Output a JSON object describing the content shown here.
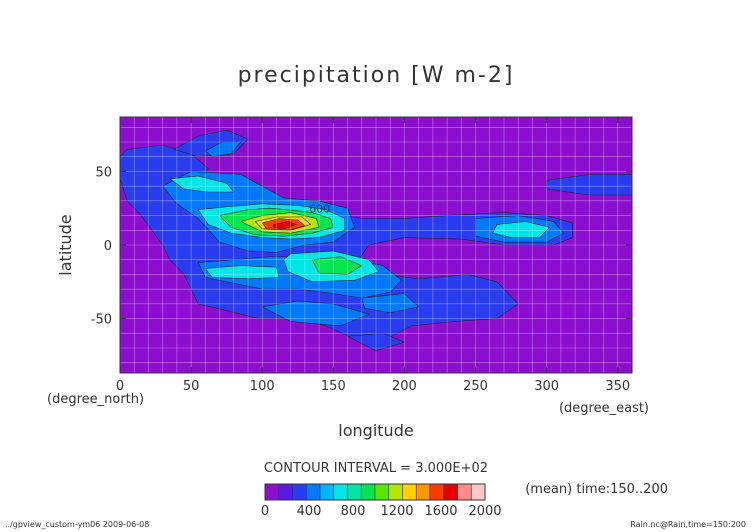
{
  "chart_data": {
    "type": "heatmap",
    "title": "precipitation [W m-2]",
    "xlabel": "longitude",
    "ylabel": "latitude",
    "x_unit": "(degree_east)",
    "y_unit": "(degree_north)",
    "xlim": [
      0,
      360
    ],
    "ylim": [
      -87,
      87
    ],
    "x_ticks": [
      0,
      50,
      100,
      150,
      200,
      250,
      300,
      350
    ],
    "y_ticks": [
      50,
      0,
      -50
    ],
    "grid": true,
    "contour_interval_text": "CONTOUR INTERVAL = 3.000E+02",
    "contour_label": "600",
    "mean_note": "(mean) time:150..200",
    "colorbar": {
      "labels": [
        "0",
        "400",
        "800",
        "1200",
        "1600",
        "2000"
      ],
      "label_values": [
        0,
        400,
        800,
        1200,
        1600,
        2000
      ],
      "min": 0,
      "max": 2000,
      "colors": [
        "#8c0fd0",
        "#5a1ae6",
        "#2a3cf0",
        "#0078ff",
        "#00b4ff",
        "#00e6e6",
        "#00e6a0",
        "#00e650",
        "#5ae600",
        "#b4e600",
        "#ffd200",
        "#ff9600",
        "#ff3c00",
        "#e60000",
        "#ff8c8c",
        "#ffc8c8"
      ]
    },
    "levels": [
      {
        "level": 1,
        "color": "#2a3cf0",
        "polygons": [
          [
            [
              5,
              65
            ],
            [
              30,
              68
            ],
            [
              50,
              62
            ],
            [
              62,
              52
            ],
            [
              55,
              40
            ],
            [
              70,
              32
            ],
            [
              95,
              30
            ],
            [
              120,
              28
            ],
            [
              145,
              22
            ],
            [
              170,
              18
            ],
            [
              200,
              18
            ],
            [
              230,
              20
            ],
            [
              270,
              22
            ],
            [
              300,
              20
            ],
            [
              318,
              15
            ],
            [
              318,
              5
            ],
            [
              305,
              0
            ],
            [
              270,
              0
            ],
            [
              240,
              4
            ],
            [
              200,
              5
            ],
            [
              175,
              0
            ],
            [
              168,
              -10
            ],
            [
              185,
              -20
            ],
            [
              210,
              -23
            ],
            [
              245,
              -20
            ],
            [
              265,
              -25
            ],
            [
              280,
              -40
            ],
            [
              265,
              -50
            ],
            [
              235,
              -52
            ],
            [
              205,
              -55
            ],
            [
              185,
              -65
            ],
            [
              165,
              -64
            ],
            [
              145,
              -55
            ],
            [
              120,
              -50
            ],
            [
              98,
              -50
            ],
            [
              72,
              -44
            ],
            [
              55,
              -40
            ],
            [
              45,
              -20
            ],
            [
              35,
              -10
            ],
            [
              30,
              0
            ],
            [
              15,
              20
            ],
            [
              5,
              30
            ],
            [
              0,
              45
            ],
            [
              0,
              60
            ]
          ],
          [
            [
              200,
              18
            ],
            [
              230,
              20
            ],
            [
              270,
              22
            ],
            [
              300,
              20
            ],
            [
              318,
              15
            ],
            [
              318,
              5
            ],
            [
              305,
              0
            ],
            [
              270,
              0
            ],
            [
              240,
              4
            ],
            [
              200,
              5
            ]
          ],
          [
            [
              300,
              44
            ],
            [
              330,
              48
            ],
            [
              360,
              48
            ],
            [
              360,
              34
            ],
            [
              330,
              34
            ],
            [
              300,
              38
            ]
          ],
          [
            [
              38,
              65
            ],
            [
              55,
              74
            ],
            [
              75,
              78
            ],
            [
              90,
              72
            ],
            [
              80,
              62
            ],
            [
              55,
              60
            ]
          ],
          [
            [
              160,
              -62
            ],
            [
              180,
              -72
            ],
            [
              200,
              -66
            ],
            [
              185,
              -60
            ]
          ]
        ]
      },
      {
        "level": 2,
        "color": "#0078ff",
        "polygons": [
          [
            [
              30,
              40
            ],
            [
              50,
              50
            ],
            [
              85,
              48
            ],
            [
              100,
              40
            ],
            [
              115,
              32
            ],
            [
              140,
              30
            ],
            [
              160,
              25
            ],
            [
              165,
              12
            ],
            [
              150,
              2
            ],
            [
              130,
              0
            ],
            [
              110,
              -5
            ],
            [
              90,
              -4
            ],
            [
              70,
              2
            ],
            [
              55,
              18
            ],
            [
              40,
              28
            ]
          ],
          [
            [
              250,
              18
            ],
            [
              280,
              20
            ],
            [
              305,
              16
            ],
            [
              312,
              8
            ],
            [
              300,
              2
            ],
            [
              270,
              2
            ],
            [
              250,
              6
            ]
          ],
          [
            [
              55,
              -12
            ],
            [
              80,
              -10
            ],
            [
              105,
              -8
            ],
            [
              135,
              -8
            ],
            [
              165,
              -10
            ],
            [
              185,
              -14
            ],
            [
              198,
              -24
            ],
            [
              190,
              -32
            ],
            [
              170,
              -36
            ],
            [
              150,
              -33
            ],
            [
              125,
              -30
            ],
            [
              100,
              -30
            ],
            [
              80,
              -26
            ],
            [
              60,
              -22
            ]
          ],
          [
            [
              170,
              -36
            ],
            [
              200,
              -33
            ],
            [
              210,
              -42
            ],
            [
              190,
              -46
            ],
            [
              172,
              -43
            ]
          ],
          [
            [
              60,
              64
            ],
            [
              72,
              70
            ],
            [
              85,
              70
            ],
            [
              78,
              62
            ],
            [
              65,
              60
            ]
          ],
          [
            [
              100,
              -42
            ],
            [
              125,
              -38
            ],
            [
              150,
              -40
            ],
            [
              175,
              -47
            ],
            [
              155,
              -55
            ],
            [
              120,
              -52
            ]
          ]
        ]
      },
      {
        "level": 3,
        "color": "#00e6e6",
        "polygons": [
          [
            [
              35,
              45
            ],
            [
              55,
              47
            ],
            [
              75,
              42
            ],
            [
              80,
              36
            ],
            [
              62,
              36
            ],
            [
              45,
              38
            ]
          ],
          [
            [
              55,
              24
            ],
            [
              75,
              26
            ],
            [
              100,
              28
            ],
            [
              125,
              27
            ],
            [
              145,
              24
            ],
            [
              158,
              18
            ],
            [
              158,
              10
            ],
            [
              140,
              5
            ],
            [
              120,
              4
            ],
            [
              100,
              5
            ],
            [
              78,
              8
            ],
            [
              62,
              14
            ]
          ],
          [
            [
              265,
              14
            ],
            [
              285,
              16
            ],
            [
              302,
              12
            ],
            [
              295,
              5
            ],
            [
              275,
              5
            ],
            [
              262,
              8
            ]
          ],
          [
            [
              120,
              -6
            ],
            [
              150,
              -4
            ],
            [
              175,
              -10
            ],
            [
              182,
              -18
            ],
            [
              165,
              -24
            ],
            [
              135,
              -25
            ],
            [
              118,
              -18
            ],
            [
              115,
              -10
            ]
          ],
          [
            [
              60,
              -16
            ],
            [
              85,
              -14
            ],
            [
              110,
              -15
            ],
            [
              112,
              -22
            ],
            [
              90,
              -23
            ],
            [
              65,
              -22
            ]
          ]
        ]
      },
      {
        "level": 4,
        "color": "#00e650",
        "polygons": [
          [
            [
              70,
              20
            ],
            [
              90,
              24
            ],
            [
              105,
              25
            ],
            [
              118,
              24
            ],
            [
              135,
              22
            ],
            [
              148,
              18
            ],
            [
              150,
              12
            ],
            [
              135,
              8
            ],
            [
              115,
              6
            ],
            [
              95,
              7
            ],
            [
              78,
              12
            ]
          ],
          [
            [
              135,
              -10
            ],
            [
              155,
              -8
            ],
            [
              170,
              -14
            ],
            [
              160,
              -20
            ],
            [
              140,
              -19
            ]
          ]
        ]
      },
      {
        "level": 5,
        "color": "#b4e600",
        "polygons": [
          [
            [
              85,
              16
            ],
            [
              100,
              20
            ],
            [
              120,
              22
            ],
            [
              138,
              18
            ],
            [
              140,
              12
            ],
            [
              120,
              8
            ],
            [
              100,
              9
            ]
          ]
        ]
      },
      {
        "level": 6,
        "color": "#ffd200",
        "polygons": [
          [
            [
              95,
              16
            ],
            [
              110,
              19
            ],
            [
              128,
              19
            ],
            [
              134,
              14
            ],
            [
              120,
              10
            ],
            [
              100,
              11
            ]
          ]
        ]
      },
      {
        "level": 7,
        "color": "#ff3c00",
        "polygons": [
          [
            [
              100,
              15
            ],
            [
              112,
              18
            ],
            [
              125,
              17
            ],
            [
              130,
              13
            ],
            [
              118,
              10
            ],
            [
              103,
              11
            ]
          ]
        ]
      },
      {
        "level": 8,
        "color": "#e60000",
        "polygons": [
          [
            [
              108,
              14
            ],
            [
              118,
              16
            ],
            [
              124,
              14
            ],
            [
              116,
              11
            ],
            [
              108,
              12
            ]
          ]
        ]
      }
    ]
  },
  "footer": {
    "left": "../gpview_custom-ym06  2009-06-08",
    "right": "Rain.nc@Rain,time=150:200"
  }
}
